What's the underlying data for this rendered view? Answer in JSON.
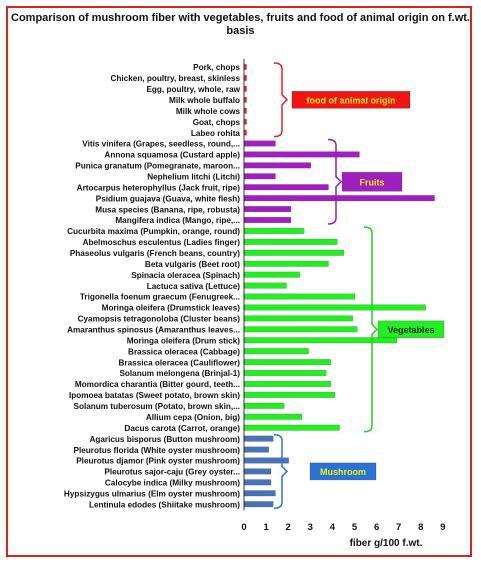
{
  "chart_data": {
    "type": "bar",
    "orientation": "horizontal",
    "title": "Comparison of mushroom fiber with vegetables, fruits and food of animal origin on f.wt. basis",
    "xlabel": "fiber g/100 f.wt.",
    "ylabel": "",
    "xlim": [
      0,
      9
    ],
    "x_ticks": [
      0,
      1,
      2,
      3,
      4,
      5,
      6,
      7,
      8,
      9
    ],
    "grid": false,
    "groups": [
      {
        "name": "food of animal origin",
        "color": "#e8202a",
        "label_bg": "#f01414",
        "label_color": "#f4f20a",
        "categories": [
          "Pork, chops",
          "Chicken, poultry, breast, skinless",
          "Egg, poultry, whole, raw",
          "Milk whole buffalo",
          "Milk whole cows",
          "Goat, chops",
          "Labeo rohita"
        ],
        "values": [
          0.05,
          0.05,
          0.05,
          0.05,
          0.05,
          0.05,
          0.05
        ]
      },
      {
        "name": "Fruits",
        "color": "#a01fc0",
        "label_bg": "#a01fc0",
        "label_color": "#f4f20a",
        "categories": [
          "Vitis vinifera (Grapes, seedless, round,...",
          "Annona squamosa (Custard apple)",
          "Punica granatum (Pomegranate, maroon...",
          "Nephelium litchi (Litchi)",
          "Artocarpus heterophyllus (Jack fruit, ripe)",
          "Psidium guajava (Guava, white flesh)",
          "Musa species (Banana, ripe, robusta)",
          "Mangifera indica (Mango, ripe,..."
        ],
        "values": [
          1.4,
          5.2,
          3.0,
          1.4,
          3.8,
          8.6,
          2.1,
          2.1
        ]
      },
      {
        "name": "Vegetables",
        "color": "#22ee22",
        "label_bg": "#22ee22",
        "label_color": "#0a2a0a",
        "categories": [
          "Cucurbita maxima (Pumpkin, orange, round)",
          "Abelmoschus esculentus (Ladies finger)",
          "Phaseolus vulgaris (French beans, country)",
          "Beta vulgaris (Beet root)",
          "Spinacia oleracea (Spinach)",
          "Lactuca sativa (Lettuce)",
          "Trigonella foenum graecum (Fenugreek...",
          "Moringa oleifera (Drumstick leaves)",
          "Cyamopsis tetragonoloba (Cluster beans)",
          "Amaranthus spinosus (Amaranthus leaves...",
          "Moringa oleifera (Drum stick)",
          "Brassica oleracea (Cabbage)",
          "Brassica oleracea (Cauliflower)",
          "Solanum melongena (Brinjal-1)",
          "Momordica charantia (Bitter gourd, teeth...",
          "Ipomoea batatas (Sweet potato, brown skin)",
          "Solanum tuberosum (Potato, brown skin,...",
          "Allium cepa (Onion, big)",
          "Dacus carota (Carrot, orange)"
        ],
        "values": [
          2.7,
          4.2,
          4.5,
          3.8,
          2.5,
          1.9,
          5.0,
          8.2,
          4.9,
          5.1,
          6.9,
          2.9,
          3.9,
          3.7,
          3.9,
          4.1,
          1.8,
          2.6,
          4.3
        ]
      },
      {
        "name": "Mushroom",
        "color": "#4a72b8",
        "label_bg": "#2a72d8",
        "label_color": "#f4f20a",
        "categories": [
          "Agaricus bisporus (Button mushroom)",
          "Pleurotus florida (White oyster mushroom)",
          "Pleurotus djamor (Pink oyster mushroom)",
          "Pleurotus sajor-caju (Grey oyster...",
          "Calocybe indica (Milky mushroom)",
          "Hypsizygus ulmarius (Elm oyster mushroom)",
          "Lentinula edodes (Shiitake mushroom)"
        ],
        "values": [
          1.3,
          1.1,
          2.0,
          1.2,
          1.2,
          1.4,
          1.3
        ]
      }
    ]
  }
}
